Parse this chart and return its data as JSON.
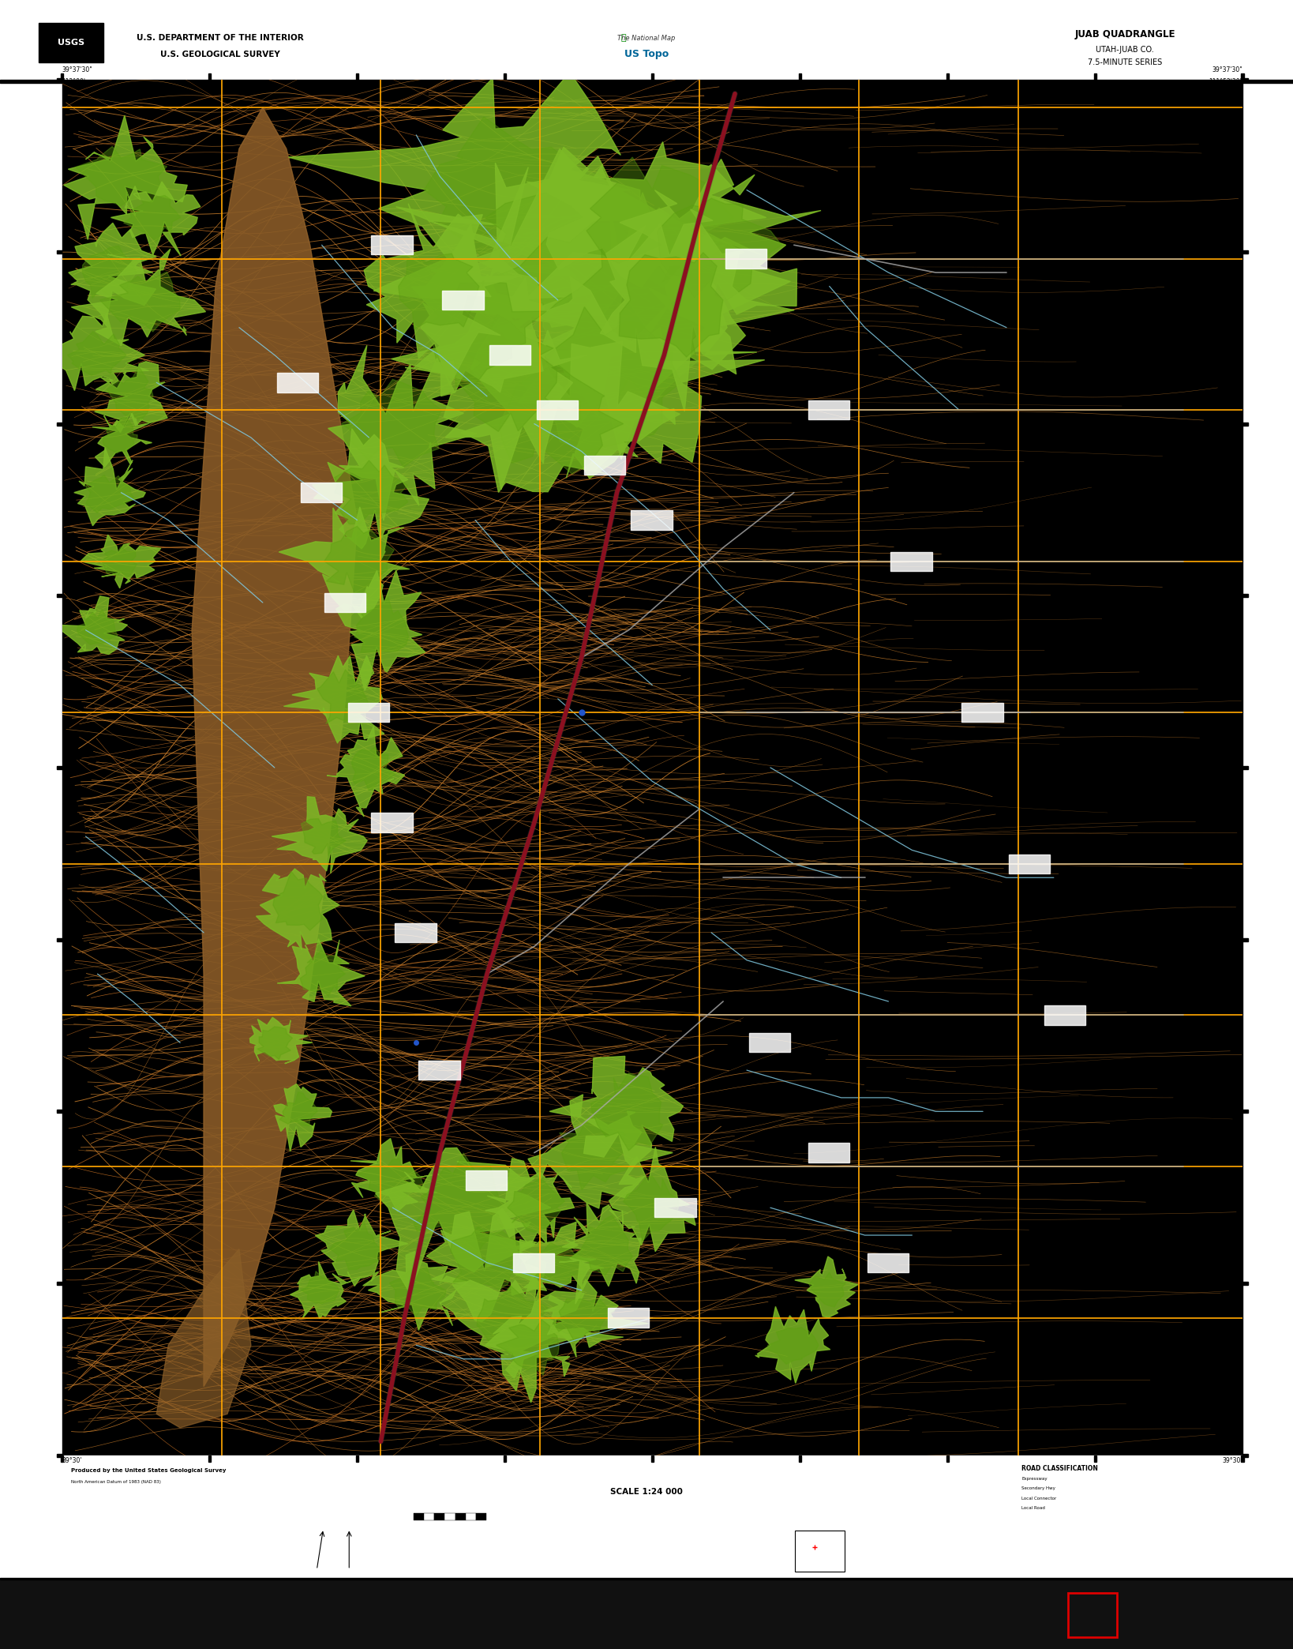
{
  "title": "JUAB QUADRANGLE",
  "subtitle1": "UTAH-JUAB CO.",
  "subtitle2": "7.5-MINUTE SERIES",
  "scale_text": "SCALE 1:24 000",
  "header_left_line1": "U.S. DEPARTMENT OF THE INTERIOR",
  "header_left_line2": "U.S. GEOLOGICAL SURVEY",
  "topo_label": "The National Map",
  "topo_sublabel": "US Topo",
  "map_bg_color": "#000000",
  "contour_color": "#c87d2a",
  "contour_color_light": "#d4904a",
  "green_color": "#7dba26",
  "brown_ridge_color": "#7a5020",
  "orange_grid_color": "#FFA500",
  "red_road_color": "#8B1a1a",
  "blue_water_color": "#80c8e0",
  "white_road_color": "#cccccc",
  "gray_road_color": "#aaaaaa",
  "footer_credits": "Produced by the United States Geological Survey",
  "road_classification_title": "ROAD CLASSIFICATION",
  "scale_label": "SCALE 1:24 000"
}
